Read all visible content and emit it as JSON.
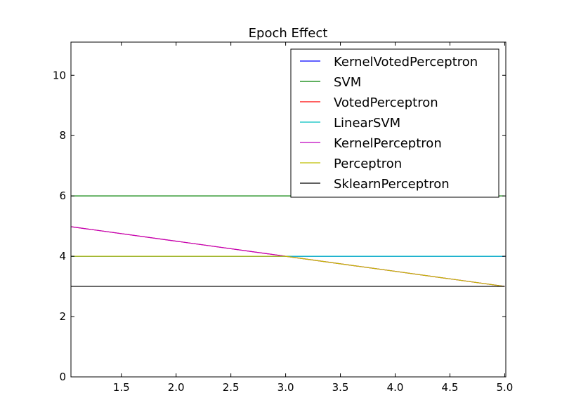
{
  "chart_data": {
    "type": "line",
    "title": "Epoch Effect",
    "xlabel": "",
    "ylabel": "",
    "xlim": [
      1.04,
      5.01
    ],
    "ylim": [
      0,
      11.1
    ],
    "xticks": [
      1.5,
      2.0,
      2.5,
      3.0,
      3.5,
      4.0,
      4.5,
      5.0
    ],
    "xtick_labels": [
      "1.5",
      "2.0",
      "2.5",
      "3.0",
      "3.5",
      "4.0",
      "4.5",
      "5.0"
    ],
    "yticks": [
      0,
      2,
      4,
      6,
      8,
      10
    ],
    "ytick_labels": [
      "0",
      "2",
      "4",
      "6",
      "8",
      "10"
    ],
    "grid": false,
    "legend_position": "top-right",
    "series": [
      {
        "name": "KernelVotedPerceptron",
        "color": "#0000ff",
        "x": [
          1,
          2,
          3,
          4,
          5
        ],
        "y": [
          4,
          4,
          4,
          4,
          4
        ]
      },
      {
        "name": "SVM",
        "color": "#008000",
        "x": [
          1,
          2,
          3,
          4,
          5
        ],
        "y": [
          6,
          6,
          6,
          6,
          6
        ]
      },
      {
        "name": "VotedPerceptron",
        "color": "#ff0000",
        "x": [
          1,
          2,
          3,
          4,
          5
        ],
        "y": [
          5,
          4.5,
          4,
          3.5,
          3
        ]
      },
      {
        "name": "LinearSVM",
        "color": "#00bfbf",
        "x": [
          1,
          2,
          3,
          4,
          5
        ],
        "y": [
          4,
          4,
          4,
          4,
          4
        ]
      },
      {
        "name": "KernelPerceptron",
        "color": "#bf00bf",
        "x": [
          1,
          2,
          3,
          4,
          5
        ],
        "y": [
          5,
          4.5,
          4,
          3.5,
          3
        ]
      },
      {
        "name": "Perceptron",
        "color": "#bfbf00",
        "x": [
          1,
          2,
          3,
          4,
          5
        ],
        "y": [
          4,
          4,
          4,
          3.5,
          3
        ]
      },
      {
        "name": "SklearnPerceptron",
        "color": "#000000",
        "x": [
          1,
          2,
          3,
          4,
          5
        ],
        "y": [
          3,
          3,
          3,
          3,
          3
        ]
      }
    ]
  }
}
